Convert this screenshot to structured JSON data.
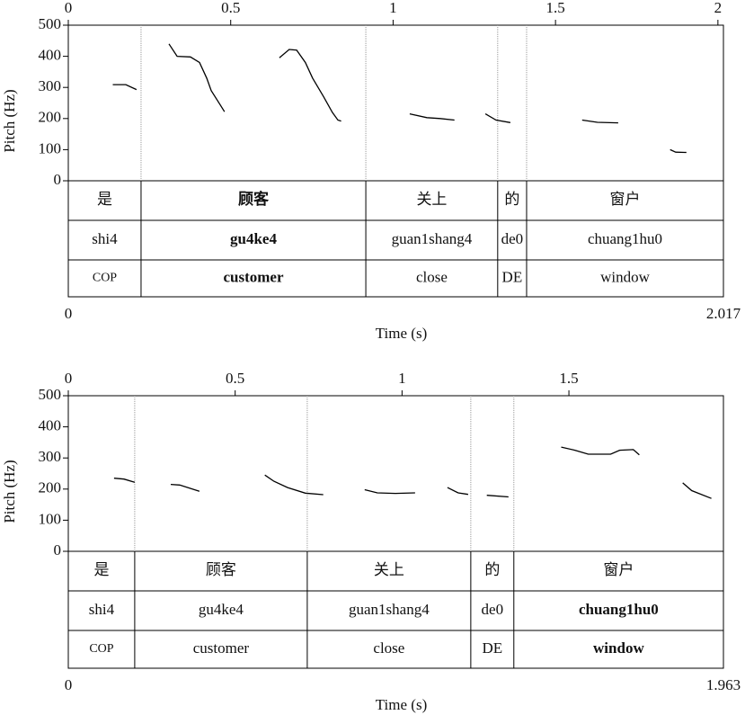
{
  "chart_data": [
    {
      "type": "line",
      "ylabel": "Pitch (Hz)",
      "xlabel": "Time (s)",
      "xlim": [
        0,
        2.017
      ],
      "xticks": [
        0,
        0.5,
        1,
        1.5,
        2
      ],
      "ylim": [
        0,
        500
      ],
      "yticks": [
        0,
        100,
        200,
        300,
        400,
        500
      ],
      "x": [
        0.137,
        0.177,
        0.21,
        null,
        0.31,
        0.335,
        0.376,
        0.404,
        0.426,
        0.44,
        0.467,
        0.481,
        null,
        0.65,
        0.68,
        0.703,
        0.73,
        0.752,
        0.786,
        0.813,
        0.83,
        0.84,
        null,
        1.051,
        1.104,
        1.145,
        1.189,
        null,
        1.284,
        1.317,
        1.361,
        null,
        1.582,
        1.629,
        1.693,
        null,
        1.853,
        1.87,
        1.903
      ],
      "series": [
        {
          "color": "#000000",
          "values": [
            309,
            309,
            293,
            null,
            440,
            400,
            398,
            380,
            330,
            290,
            245,
            222,
            null,
            395,
            422,
            420,
            380,
            330,
            270,
            220,
            195,
            192,
            null,
            215,
            203,
            200,
            195,
            null,
            215,
            195,
            187,
            null,
            195,
            188,
            186,
            null,
            100,
            92,
            91
          ]
        }
      ],
      "boundaries": [
        0.224,
        0.916,
        1.322,
        1.411
      ],
      "emphasis": 1,
      "tiers": [
        [
          "是",
          "顾客",
          "关上",
          "的",
          "窗户"
        ],
        [
          "shi4",
          "gu4ke4",
          "guan1shang4",
          "de0",
          "chuang1hu0"
        ],
        [
          "COP",
          "customer",
          "close",
          "DE",
          "window"
        ]
      ]
    },
    {
      "type": "line",
      "ylabel": "Pitch (Hz)",
      "xlabel": "Time (s)",
      "xlim": [
        0,
        1.963
      ],
      "xticks": [
        0,
        0.5,
        1,
        1.5
      ],
      "ylim": [
        0,
        500
      ],
      "yticks": [
        0,
        100,
        200,
        300,
        400,
        500
      ],
      "x": [
        0.137,
        0.167,
        0.199,
        null,
        0.307,
        0.334,
        0.393,
        null,
        0.589,
        0.616,
        0.657,
        0.71,
        0.764,
        null,
        0.888,
        0.926,
        0.98,
        1.039,
        null,
        1.136,
        1.168,
        1.198,
        null,
        1.254,
        1.319,
        null,
        1.477,
        1.518,
        1.558,
        1.625,
        1.652,
        1.693,
        1.711,
        null,
        1.841,
        1.868,
        1.927
      ],
      "series": [
        {
          "color": "#000000",
          "values": [
            235,
            232,
            222,
            null,
            215,
            213,
            193,
            null,
            245,
            225,
            205,
            187,
            182,
            null,
            198,
            188,
            186,
            188,
            null,
            205,
            188,
            183,
            null,
            180,
            175,
            null,
            335,
            325,
            312,
            312,
            325,
            327,
            310,
            null,
            220,
            195,
            170
          ]
        }
      ],
      "boundaries": [
        0.199,
        0.716,
        1.206,
        1.335
      ],
      "emphasis": 4,
      "tiers": [
        [
          "是",
          "顾客",
          "关上",
          "的",
          "窗户"
        ],
        [
          "shi4",
          "gu4ke4",
          "guan1shang4",
          "de0",
          "chuang1hu0"
        ],
        [
          "COP",
          "customer",
          "close",
          "DE",
          "window"
        ]
      ]
    }
  ]
}
